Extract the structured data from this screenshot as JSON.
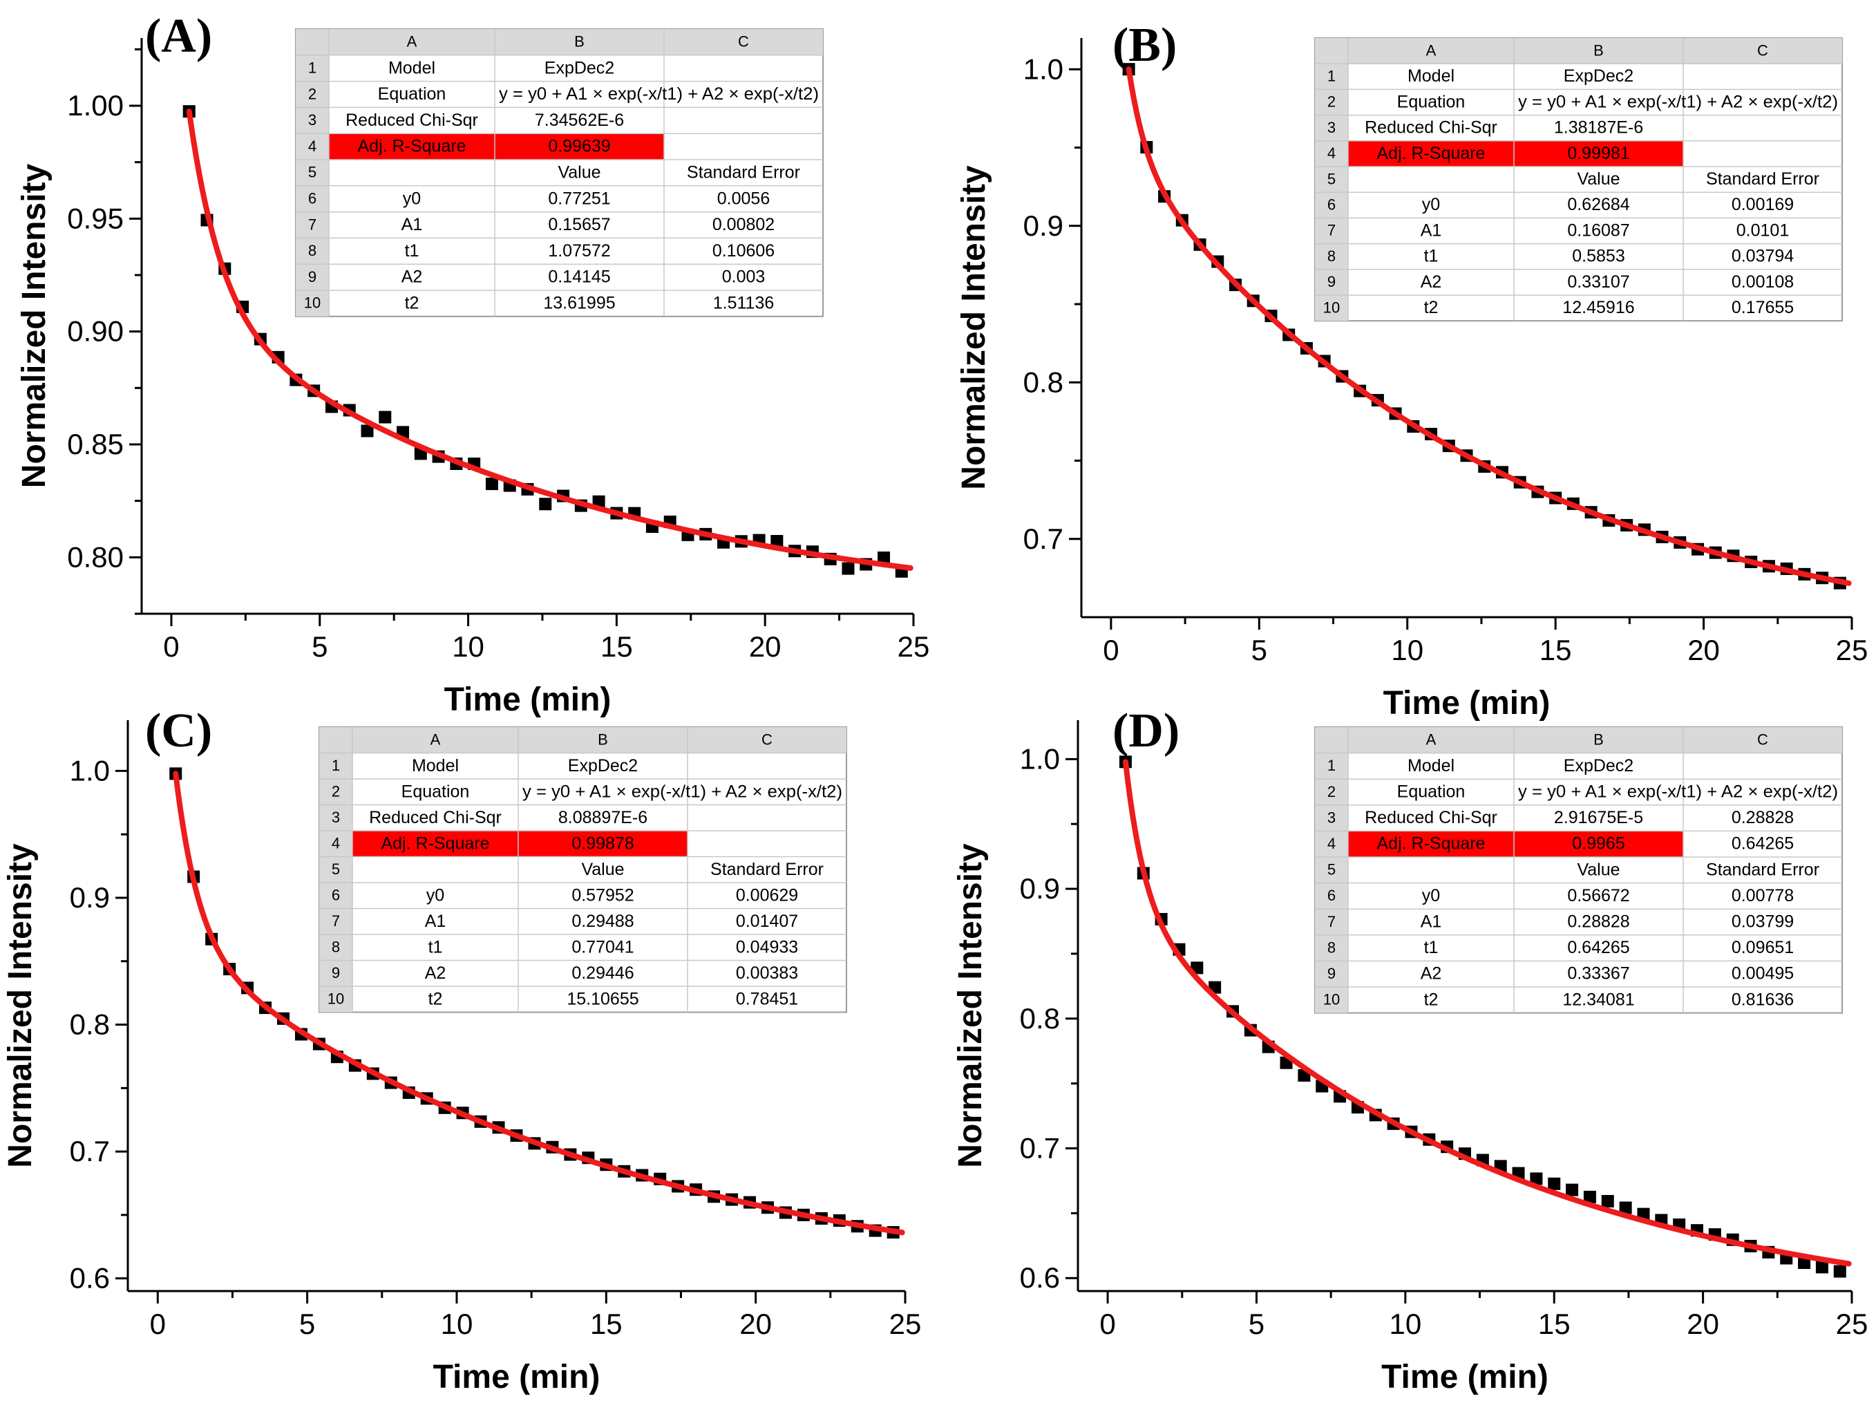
{
  "figure": {
    "colors": {
      "points": "#000000",
      "fit": "#ee1c1c",
      "highlight": "#ff0000",
      "grid_hdr": "#d9d9d9",
      "grid_line": "#c8c8c8"
    }
  },
  "table_labels": {
    "columns": [
      "A",
      "B",
      "C"
    ],
    "row_numbers": [
      "1",
      "2",
      "3",
      "4",
      "5",
      "6",
      "7",
      "8",
      "9",
      "10"
    ],
    "model_label": "Model",
    "equation_label": "Equation",
    "chi_label": "Reduced Chi-Sqr",
    "r2_label": "Adj. R-Square",
    "value_label": "Value",
    "std_err_label": "Standard Error",
    "equation_text": "y = y0 + A1 × exp(-x/t1) + A2 × exp(-x/t2)",
    "param_names": [
      "y0",
      "A1",
      "t1",
      "A2",
      "t2"
    ]
  },
  "chart_data": [
    {
      "type": "scatter",
      "panel": "(A)",
      "xlabel": "Time (min)",
      "ylabel": "Normalized Intensity",
      "xlim": [
        -1,
        25
      ],
      "ylim": [
        0.775,
        1.03
      ],
      "xticks": [
        0,
        5,
        10,
        15,
        20,
        25
      ],
      "xtick_labels": [
        "0",
        "5",
        "10",
        "15",
        "20",
        "25"
      ],
      "yticks": [
        0.8,
        0.85,
        0.9,
        0.95,
        1.0
      ],
      "ytick_labels": [
        "0.80",
        "0.85",
        "0.90",
        "0.95",
        "1.00"
      ],
      "fit": {
        "model": "ExpDec2",
        "y0": 0.77251,
        "A1": 0.15657,
        "t1": 1.07572,
        "A2": 0.14145,
        "t2": 13.61995
      },
      "x_start": 0.6,
      "x_step": 0.6,
      "n_points": 41,
      "residuals": [
        0,
        -0.004,
        0.002,
        0.003,
        0.001,
        0.002,
        -0.001,
        0,
        -0.002,
        0.001,
        -0.004,
        0.006,
        0.003,
        -0.003,
        -0.001,
        -0.001,
        0.002,
        -0.004,
        -0.002,
        -0.001,
        -0.005,
        0.001,
        -0.001,
        0.003,
        0,
        0.002,
        -0.002,
        0.002,
        -0.002,
        0,
        -0.002,
        0,
        0.002,
        0.003,
        0,
        0.001,
        -0.001,
        -0.004,
        -0.001,
        0.003,
        -0.002
      ],
      "table": {
        "model": "ExpDec2",
        "chi": "7.34562E-6",
        "chi_c": "",
        "r2": "0.99639",
        "r2_c": "",
        "params": [
          {
            "value": "0.77251",
            "error": "0.0056"
          },
          {
            "value": "0.15657",
            "error": "0.00802"
          },
          {
            "value": "1.07572",
            "error": "0.10606"
          },
          {
            "value": "0.14145",
            "error": "0.003"
          },
          {
            "value": "13.61995",
            "error": "1.51136"
          }
        ]
      }
    },
    {
      "type": "scatter",
      "panel": "(B)",
      "xlabel": "Time (min)",
      "ylabel": "Normalized Intensity",
      "xlim": [
        -1,
        25
      ],
      "ylim": [
        0.65,
        1.02
      ],
      "xticks": [
        0,
        5,
        10,
        15,
        20,
        25
      ],
      "xtick_labels": [
        "0",
        "5",
        "10",
        "15",
        "20",
        "25"
      ],
      "yticks": [
        0.7,
        0.8,
        0.9,
        1.0
      ],
      "ytick_labels": [
        "0.7",
        "0.8",
        "0.9",
        "1.0"
      ],
      "fit": {
        "model": "ExpDec2",
        "y0": 0.62684,
        "A1": 0.16087,
        "t1": 0.5853,
        "A2": 0.33107,
        "t2": 12.45916
      },
      "x_start": 0.6,
      "x_step": 0.6,
      "n_points": 41,
      "residuals": [
        0,
        0.002,
        -0.002,
        0.001,
        0,
        0.002,
        -0.001,
        0,
        0.001,
        -0.001,
        0,
        0.001,
        0,
        -0.001,
        0.001,
        0,
        -0.001,
        0.001,
        0,
        0,
        -0.001,
        0.001,
        0,
        -0.001,
        0,
        0.001,
        0,
        -0.001,
        0,
        0.001,
        0,
        0,
        -0.001,
        0,
        0.001,
        0,
        0,
        0.001,
        0,
        0,
        -0.001
      ],
      "table": {
        "model": "ExpDec2",
        "chi": "1.38187E-6",
        "chi_c": "",
        "r2": "0.99981",
        "r2_c": "",
        "params": [
          {
            "value": "0.62684",
            "error": "0.00169"
          },
          {
            "value": "0.16087",
            "error": "0.0101"
          },
          {
            "value": "0.5853",
            "error": "0.03794"
          },
          {
            "value": "0.33107",
            "error": "0.00108"
          },
          {
            "value": "12.45916",
            "error": "0.17655"
          }
        ]
      }
    },
    {
      "type": "scatter",
      "panel": "(C)",
      "xlabel": "Time (min)",
      "ylabel": "Normalized Intensity",
      "xlim": [
        -1,
        25
      ],
      "ylim": [
        0.59,
        1.04
      ],
      "xticks": [
        0,
        5,
        10,
        15,
        20,
        25
      ],
      "xtick_labels": [
        "0",
        "5",
        "10",
        "15",
        "20",
        "25"
      ],
      "yticks": [
        0.6,
        0.7,
        0.8,
        0.9,
        1.0
      ],
      "ytick_labels": [
        "0.6",
        "0.7",
        "0.8",
        "0.9",
        "1.0"
      ],
      "fit": {
        "model": "ExpDec2",
        "y0": 0.57952,
        "A1": 0.29488,
        "t1": 0.77041,
        "A2": 0.29446,
        "t2": 15.10655
      },
      "x_start": 0.6,
      "x_step": 0.6,
      "n_points": 41,
      "residuals": [
        0,
        0.003,
        -0.002,
        0,
        0.002,
        -0.001,
        0.001,
        -0.002,
        -0.001,
        -0.003,
        -0.002,
        -0.001,
        -0.001,
        -0.002,
        0,
        -0.001,
        0.001,
        0,
        0.001,
        0,
        -0.001,
        0.001,
        0,
        0.002,
        0.001,
        0,
        0.001,
        0.002,
        0,
        0.001,
        -0.001,
        0,
        0.001,
        0,
        -0.001,
        0,
        0,
        0.001,
        -0.001,
        -0.002,
        -0.001
      ],
      "table": {
        "model": "ExpDec2",
        "chi": "8.08897E-6",
        "chi_c": "",
        "r2": "0.99878",
        "r2_c": "",
        "params": [
          {
            "value": "0.57952",
            "error": "0.00629"
          },
          {
            "value": "0.29488",
            "error": "0.01407"
          },
          {
            "value": "0.77041",
            "error": "0.04933"
          },
          {
            "value": "0.29446",
            "error": "0.00383"
          },
          {
            "value": "15.10655",
            "error": "0.78451"
          }
        ]
      }
    },
    {
      "type": "scatter",
      "panel": "(D)",
      "xlabel": "Time (min)",
      "ylabel": "Normalized Intensity",
      "xlim": [
        -1,
        25
      ],
      "ylim": [
        0.59,
        1.03
      ],
      "xticks": [
        0,
        5,
        10,
        15,
        20,
        25
      ],
      "xtick_labels": [
        "0",
        "5",
        "10",
        "15",
        "20",
        "25"
      ],
      "yticks": [
        0.6,
        0.7,
        0.8,
        0.9,
        1.0
      ],
      "ytick_labels": [
        "0.6",
        "0.7",
        "0.8",
        "0.9",
        "1.0"
      ],
      "fit": {
        "model": "ExpDec2",
        "y0": 0.56672,
        "A1": 0.28828,
        "t1": 0.64265,
        "A2": 0.33367,
        "t2": 12.34081
      },
      "x_start": 0.6,
      "x_step": 0.6,
      "n_points": 41,
      "residuals": [
        0,
        -0.002,
        0.004,
        0.005,
        0.008,
        0.007,
        0.001,
        -0.002,
        -0.004,
        -0.006,
        -0.006,
        -0.005,
        -0.004,
        -0.004,
        -0.002,
        -0.001,
        0,
        0.001,
        0.002,
        0.003,
        0.004,
        0.005,
        0.005,
        0.006,
        0.007,
        0.007,
        0.006,
        0.007,
        0.006,
        0.005,
        0.004,
        0.004,
        0.003,
        0.003,
        0.002,
        0,
        -0.002,
        -0.004,
        -0.005,
        -0.006,
        -0.007
      ],
      "table": {
        "model": "ExpDec2",
        "chi": "2.91675E-5",
        "chi_c": "0.28828",
        "r2": "0.9965",
        "r2_c": "0.64265",
        "params": [
          {
            "value": "0.56672",
            "error": "0.00778"
          },
          {
            "value": "0.28828",
            "error": "0.03799"
          },
          {
            "value": "0.64265",
            "error": "0.09651"
          },
          {
            "value": "0.33367",
            "error": "0.00495"
          },
          {
            "value": "12.34081",
            "error": "0.81636"
          }
        ]
      }
    }
  ]
}
